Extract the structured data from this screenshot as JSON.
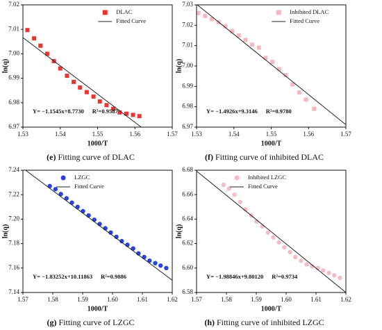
{
  "chart_data": [
    {
      "type": "scatter",
      "xlabel": "1000/T",
      "ylabel": "ln(q)",
      "xlim": [
        1.53,
        1.57
      ],
      "ylim": [
        6.97,
        7.02
      ],
      "xticks": [
        1.53,
        1.54,
        1.55,
        1.56,
        1.57
      ],
      "yticks": [
        6.97,
        6.98,
        6.99,
        {
          "value": 7,
          "label": "7.00"
        },
        7.01,
        7.02
      ],
      "legend": "upper right",
      "series": [
        {
          "name": "DLAC",
          "color": "#e8352f",
          "marker": "square",
          "x": [
            1.5312,
            1.533,
            1.5347,
            1.5365,
            1.5383,
            1.54,
            1.5418,
            1.5436,
            1.5453,
            1.5471,
            1.5489,
            1.5506,
            1.5524,
            1.5542,
            1.5559,
            1.5577,
            1.5595,
            1.5612
          ],
          "values": [
            7.0097,
            7.0063,
            7.0033,
            7.0,
            6.997,
            6.994,
            6.991,
            6.9885,
            6.9862,
            6.9843,
            6.9825,
            6.9805,
            6.979,
            6.9775,
            6.976,
            6.9755,
            6.975,
            6.9745
          ]
        },
        {
          "name": "Fitted Curve",
          "color": "#222222",
          "type": "line",
          "x": [
            1.53,
            1.5617
          ],
          "values": [
            7.0066,
            6.97
          ]
        }
      ],
      "annotations": [
        "Y= −1.1545x+8.7730",
        "R²=0.9587"
      ],
      "caption": {
        "label": "(e)",
        "text": "Fitting curve of DLAC"
      }
    },
    {
      "type": "scatter",
      "xlabel": "1000/T",
      "ylabel": "ln(q)",
      "xlim": [
        1.53,
        1.57
      ],
      "ylim": [
        6.97,
        7.03
      ],
      "xticks": [
        1.53,
        1.54,
        1.55,
        1.56,
        1.57
      ],
      "yticks": [
        6.97,
        6.98,
        6.99,
        {
          "value": 7,
          "label": "7.00"
        },
        7.01,
        7.02,
        7.03
      ],
      "legend": "upper right",
      "series": [
        {
          "name": "Inhibited DLAC",
          "color": "#f4b9bc",
          "marker": "square",
          "x": [
            1.5305,
            1.5323,
            1.5341,
            1.5359,
            1.5377,
            1.5395,
            1.5413,
            1.5431,
            1.5449,
            1.5467,
            1.5485,
            1.5503,
            1.5521,
            1.5539,
            1.5557,
            1.5575,
            1.5593,
            1.5615
          ],
          "values": [
            7.026,
            7.0245,
            7.023,
            7.0215,
            7.0195,
            7.017,
            7.015,
            7.0128,
            7.0105,
            7.009,
            7.004,
            7.002,
            6.9985,
            6.9955,
            6.991,
            6.987,
            6.9835,
            6.979
          ]
        },
        {
          "name": "Fitted Curve",
          "color": "#222222",
          "type": "line",
          "x": [
            1.5302,
            1.57
          ],
          "values": [
            7.03,
            6.9712
          ]
        }
      ],
      "annotations": [
        "Y= −1.4926x+9.3146",
        "R²=0.9780"
      ],
      "caption": {
        "label": "(f)",
        "text": "Fitting curve of inhibited DLAC"
      }
    },
    {
      "type": "scatter",
      "xlabel": "1000/T",
      "ylabel": "ln(q)",
      "xlim": [
        1.57,
        1.62
      ],
      "ylim": [
        7.14,
        7.24
      ],
      "xticks": [
        1.57,
        1.58,
        1.59,
        {
          "value": 1.6,
          "label": "1.60"
        },
        1.61,
        1.62
      ],
      "yticks": [
        7.14,
        7.16,
        7.18,
        {
          "value": 7.2,
          "label": "7.20"
        },
        7.22,
        7.24
      ],
      "legend": "upper left",
      "series": [
        {
          "name": "LZGC",
          "color": "#2443e0",
          "marker": "circle",
          "x": [
            1.579,
            1.5809,
            1.5827,
            1.5846,
            1.5864,
            1.5883,
            1.5901,
            1.592,
            1.5939,
            1.5957,
            1.5976,
            1.5994,
            1.6013,
            1.6031,
            1.605,
            1.6069,
            1.6087,
            1.6106,
            1.6124,
            1.6143,
            1.6161,
            1.618
          ],
          "values": [
            7.227,
            7.2245,
            7.2205,
            7.217,
            7.2135,
            7.21,
            7.2065,
            7.203,
            7.1995,
            7.196,
            7.1925,
            7.189,
            7.1855,
            7.182,
            7.179,
            7.176,
            7.172,
            7.169,
            7.166,
            7.164,
            7.162,
            7.16
          ]
        },
        {
          "name": "Fitted Curve",
          "color": "#222222",
          "type": "line",
          "x": [
            1.5709,
            1.62
          ],
          "values": [
            7.24,
            7.15
          ]
        }
      ],
      "annotations": [
        "Y= −1.83252x+10.11863",
        "R²=0.9886"
      ],
      "caption": {
        "label": "(g)",
        "text": "Fitting curve of LZGC"
      }
    },
    {
      "type": "scatter",
      "xlabel": "1000/T",
      "ylabel": "ln(q)",
      "xlim": [
        1.57,
        1.62
      ],
      "ylim": [
        6.58,
        6.68
      ],
      "xticks": [
        1.57,
        1.58,
        1.59,
        {
          "value": 1.6,
          "label": "1.60"
        },
        1.61,
        1.62
      ],
      "yticks": [
        6.58,
        {
          "value": 6.6,
          "label": "6.60"
        },
        6.62,
        6.64,
        6.66,
        6.68
      ],
      "legend": "upper left",
      "series": [
        {
          "name": "Inhibited LZGC",
          "color": "#f7bcc3",
          "marker": "circle",
          "x": [
            1.579,
            1.5809,
            1.5827,
            1.5846,
            1.5864,
            1.5883,
            1.5901,
            1.592,
            1.5939,
            1.5957,
            1.5976,
            1.5994,
            1.6013,
            1.6031,
            1.605,
            1.6069,
            1.6087,
            1.6106,
            1.6124,
            1.6143,
            1.6161,
            1.618
          ],
          "values": [
            6.668,
            6.665,
            6.66,
            6.654,
            6.648,
            6.643,
            6.638,
            6.634,
            6.629,
            6.625,
            6.621,
            6.617,
            6.613,
            6.609,
            6.606,
            6.603,
            6.6015,
            6.6,
            6.598,
            6.596,
            6.594,
            6.592
          ]
        },
        {
          "name": "Fitted Curve",
          "color": "#222222",
          "type": "line",
          "x": [
            1.57,
            1.62
          ],
          "values": [
            6.6793,
            6.58
          ]
        }
      ],
      "annotations": [
        "Y= −1.98846x+9.80120",
        "R²=0.9734"
      ],
      "caption": {
        "label": "(h)",
        "text": "Fitting curve of inhibited LZGC"
      }
    }
  ]
}
